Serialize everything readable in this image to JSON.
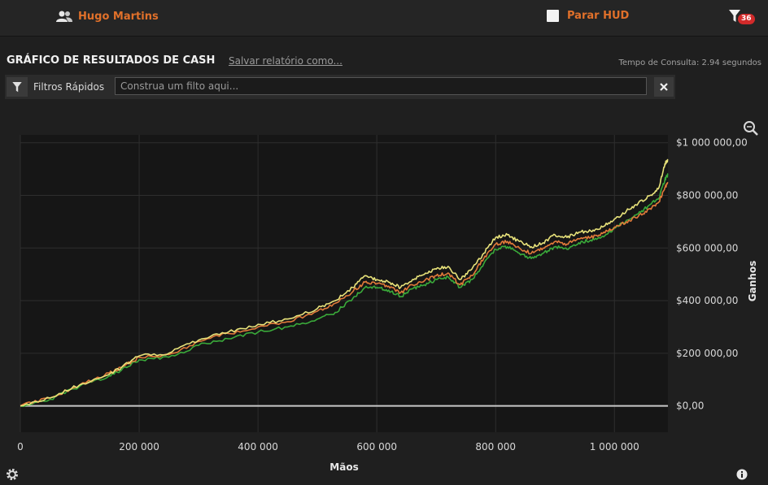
{
  "header": {
    "user_name": "Hugo Martins",
    "hud_label": "Parar HUD",
    "filter_badge": "36"
  },
  "report": {
    "title": "GRÁFICO DE RESULTADOS DE CASH",
    "save_link": "Salvar relatório como...",
    "query_time": "Tempo de Consulta: 2.94 segundos"
  },
  "quick_filters": {
    "label": "Filtros Rápidos",
    "placeholder": "Construa um filto aqui..."
  },
  "icons": [
    "users-icon",
    "checkbox-icon",
    "filter-icon",
    "close-icon",
    "zoom-icon",
    "gear-icon",
    "info-icon"
  ],
  "colors": {
    "accent": "#e0702a",
    "series_yellow": "#e8e27a",
    "series_orange": "#e07a3a",
    "series_green": "#3aaa3a"
  },
  "chart_data": {
    "type": "line",
    "xlabel": "Mãos",
    "ylabel": "Ganhos",
    "xlim": [
      0,
      1090000
    ],
    "ylim": [
      -100000,
      1030000
    ],
    "x_ticks": [
      0,
      200000,
      400000,
      600000,
      800000,
      1000000
    ],
    "x_tick_labels": [
      "0",
      "200 000",
      "400 000",
      "600 000",
      "800 000",
      "1 000 000"
    ],
    "y_ticks": [
      0,
      200000,
      400000,
      600000,
      800000,
      1000000
    ],
    "y_tick_labels": [
      "$0,00",
      "$200 000,00",
      "$400 000,00",
      "$600 000,00",
      "$800 000,00",
      "$1 000 000,00"
    ],
    "grid": true,
    "x": [
      0,
      50000,
      100000,
      150000,
      170000,
      200000,
      250000,
      300000,
      350000,
      400000,
      450000,
      500000,
      530000,
      560000,
      580000,
      600000,
      620000,
      640000,
      660000,
      680000,
      700000,
      720000,
      740000,
      760000,
      780000,
      800000,
      820000,
      840000,
      860000,
      880000,
      900000,
      920000,
      940000,
      960000,
      980000,
      1000000,
      1020000,
      1040000,
      1060000,
      1075000,
      1085000,
      1090000
    ],
    "series": [
      {
        "values": [
          0,
          30000,
          80000,
          120000,
          145000,
          190000,
          200000,
          250000,
          280000,
          310000,
          330000,
          370000,
          400000,
          450000,
          495000,
          480000,
          470000,
          450000,
          480000,
          500000,
          520000,
          530000,
          480000,
          520000,
          580000,
          640000,
          650000,
          625000,
          605000,
          620000,
          650000,
          640000,
          660000,
          665000,
          680000,
          710000,
          740000,
          770000,
          800000,
          830000,
          920000,
          935000
        ]
      },
      {
        "values": [
          0,
          30000,
          80000,
          125000,
          145000,
          185000,
          195000,
          245000,
          275000,
          300000,
          320000,
          360000,
          390000,
          435000,
          470000,
          465000,
          455000,
          430000,
          460000,
          475000,
          495000,
          505000,
          460000,
          495000,
          560000,
          615000,
          625000,
          600000,
          580000,
          600000,
          625000,
          615000,
          635000,
          640000,
          655000,
          680000,
          700000,
          720000,
          750000,
          775000,
          830000,
          850000
        ]
      },
      {
        "values": [
          0,
          25000,
          75000,
          115000,
          135000,
          175000,
          185000,
          230000,
          255000,
          280000,
          300000,
          330000,
          355000,
          410000,
          450000,
          450000,
          440000,
          415000,
          445000,
          460000,
          480000,
          490000,
          450000,
          480000,
          540000,
          595000,
          605000,
          580000,
          560000,
          580000,
          605000,
          595000,
          620000,
          630000,
          645000,
          675000,
          705000,
          730000,
          765000,
          790000,
          860000,
          880000
        ]
      }
    ]
  }
}
